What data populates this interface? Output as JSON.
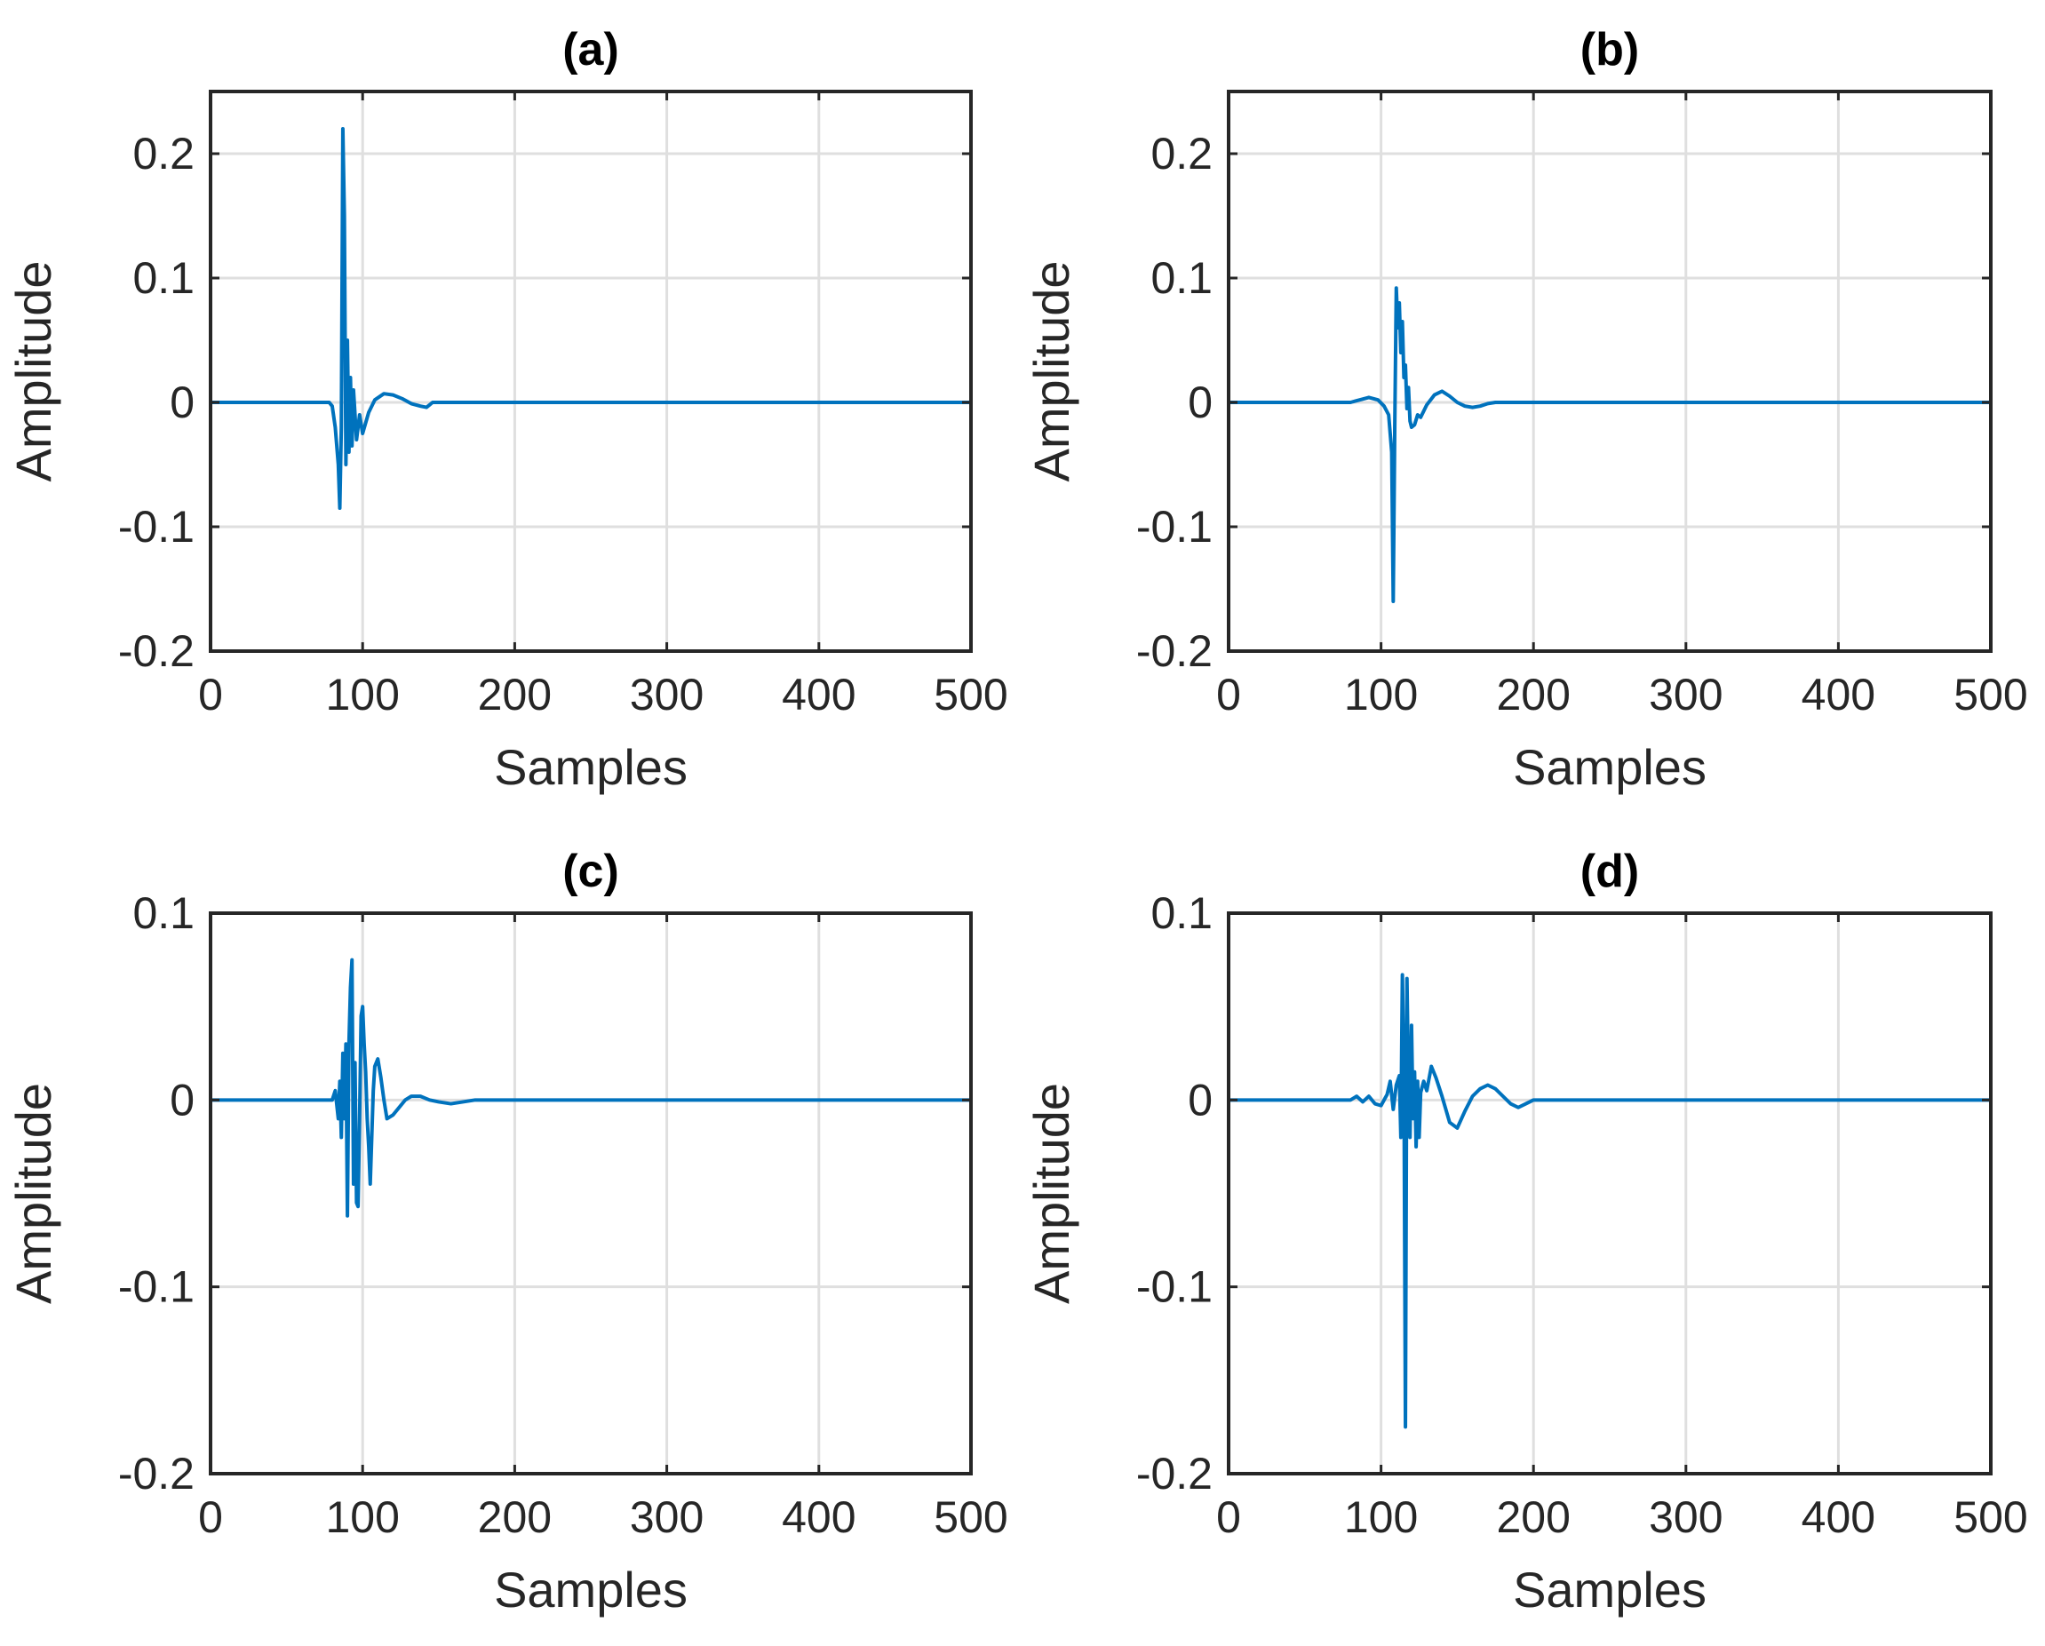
{
  "figure": {
    "line_color": "#0072BD",
    "grid_color": "#dfdfdf",
    "axes_color": "#262626"
  },
  "chart_data": [
    {
      "type": "line",
      "title": "(a)",
      "xlabel": "Samples",
      "ylabel": "Amplitude",
      "xlim": [
        0,
        500
      ],
      "ylim": [
        -0.2,
        0.25
      ],
      "xticks": [
        0,
        100,
        200,
        300,
        400,
        500
      ],
      "yticks": [
        -0.2,
        -0.1,
        0,
        0.1,
        0.2
      ],
      "xtick_labels": [
        "0",
        "100",
        "200",
        "300",
        "400",
        "500"
      ],
      "ytick_labels": [
        "-0.2",
        "-0.1",
        "0",
        "0.1",
        "0.2"
      ],
      "grid": true,
      "series": [
        {
          "x": [
            0,
            78,
            80,
            82,
            84,
            85,
            86,
            87,
            88,
            89,
            90,
            91,
            92,
            93,
            94,
            96,
            98,
            100,
            104,
            108,
            114,
            120,
            126,
            132,
            138,
            142,
            144,
            146,
            500
          ],
          "y": [
            0,
            0,
            -0.003,
            -0.02,
            -0.05,
            -0.085,
            -0.02,
            0.22,
            0.15,
            -0.05,
            0.05,
            -0.04,
            0.02,
            -0.035,
            0.01,
            -0.03,
            -0.01,
            -0.025,
            -0.008,
            0.002,
            0.007,
            0.006,
            0.003,
            -0.001,
            -0.003,
            -0.004,
            -0.002,
            0,
            0
          ]
        }
      ]
    },
    {
      "type": "line",
      "title": "(b)",
      "xlabel": "Samples",
      "ylabel": "Amplitude",
      "xlim": [
        0,
        500
      ],
      "ylim": [
        -0.2,
        0.25
      ],
      "xticks": [
        0,
        100,
        200,
        300,
        400,
        500
      ],
      "yticks": [
        -0.2,
        -0.1,
        0,
        0.1,
        0.2
      ],
      "xtick_labels": [
        "0",
        "100",
        "200",
        "300",
        "400",
        "500"
      ],
      "ytick_labels": [
        "-0.2",
        "-0.1",
        "0",
        "0.1",
        "0.2"
      ],
      "grid": true,
      "series": [
        {
          "x": [
            0,
            80,
            86,
            92,
            98,
            102,
            105,
            107,
            108,
            109,
            110,
            111,
            112,
            113,
            114,
            115,
            116,
            117,
            118,
            119,
            120,
            122,
            124,
            126,
            130,
            135,
            140,
            145,
            150,
            155,
            160,
            165,
            170,
            175,
            180,
            500
          ],
          "y": [
            0,
            0,
            0.002,
            0.004,
            0.002,
            -0.003,
            -0.01,
            -0.04,
            -0.16,
            -0.02,
            0.092,
            0.06,
            0.08,
            0.04,
            0.065,
            0.02,
            0.03,
            -0.005,
            0.012,
            -0.015,
            -0.02,
            -0.018,
            -0.01,
            -0.012,
            -0.002,
            0.006,
            0.009,
            0.005,
            0.0,
            -0.003,
            -0.004,
            -0.003,
            -0.001,
            0,
            0,
            0
          ]
        }
      ]
    },
    {
      "type": "line",
      "title": "(c)",
      "xlabel": "Samples",
      "ylabel": "Amplitude",
      "xlim": [
        0,
        500
      ],
      "ylim": [
        -0.2,
        0.1
      ],
      "xticks": [
        0,
        100,
        200,
        300,
        400,
        500
      ],
      "yticks": [
        -0.2,
        -0.1,
        0,
        0.1
      ],
      "xtick_labels": [
        "0",
        "100",
        "200",
        "300",
        "400",
        "500"
      ],
      "ytick_labels": [
        "-0.2",
        "-0.1",
        "0",
        "0.1"
      ],
      "grid": true,
      "series": [
        {
          "x": [
            0,
            80,
            82,
            84,
            85,
            86,
            87,
            88,
            89,
            90,
            91,
            92,
            93,
            94,
            95,
            96,
            97,
            98,
            99,
            100,
            101,
            102,
            103,
            104,
            105,
            106,
            107,
            108,
            110,
            112,
            114,
            116,
            120,
            124,
            128,
            132,
            138,
            144,
            150,
            158,
            166,
            174,
            180,
            500
          ],
          "y": [
            0,
            0,
            0.005,
            -0.01,
            0.01,
            -0.02,
            0.025,
            -0.01,
            0.03,
            -0.062,
            0.03,
            0.06,
            0.075,
            -0.045,
            0.02,
            -0.055,
            -0.057,
            -0.01,
            0.045,
            0.05,
            0.03,
            0.015,
            -0.01,
            -0.025,
            -0.045,
            -0.02,
            0.005,
            0.018,
            0.022,
            0.012,
            0.0,
            -0.01,
            -0.008,
            -0.004,
            0.0,
            0.002,
            0.002,
            0.0,
            -0.001,
            -0.002,
            -0.001,
            0,
            0,
            0
          ]
        }
      ]
    },
    {
      "type": "line",
      "title": "(d)",
      "xlabel": "Samples",
      "ylabel": "Amplitude",
      "xlim": [
        0,
        500
      ],
      "ylim": [
        -0.2,
        0.1
      ],
      "xticks": [
        0,
        100,
        200,
        300,
        400,
        500
      ],
      "yticks": [
        -0.2,
        -0.1,
        0,
        0.1
      ],
      "xtick_labels": [
        "0",
        "100",
        "200",
        "300",
        "400",
        "500"
      ],
      "ytick_labels": [
        "-0.2",
        "-0.1",
        "0",
        "0.1"
      ],
      "grid": true,
      "series": [
        {
          "x": [
            0,
            80,
            84,
            88,
            92,
            96,
            100,
            104,
            106,
            108,
            110,
            112,
            113,
            114,
            115,
            116,
            117,
            118,
            119,
            120,
            121,
            122,
            123,
            124,
            125,
            126,
            128,
            130,
            133,
            136,
            140,
            145,
            150,
            155,
            160,
            165,
            170,
            175,
            180,
            185,
            190,
            195,
            200,
            500
          ],
          "y": [
            0,
            0,
            0.002,
            -0.001,
            0.002,
            -0.002,
            -0.003,
            0.003,
            0.01,
            -0.005,
            0.008,
            0.013,
            -0.02,
            0.067,
            0.02,
            -0.175,
            0.065,
            0.01,
            -0.02,
            0.04,
            -0.01,
            0.015,
            -0.025,
            0.01,
            -0.02,
            0.004,
            0.01,
            0.005,
            0.018,
            0.012,
            0.002,
            -0.012,
            -0.015,
            -0.006,
            0.002,
            0.006,
            0.008,
            0.006,
            0.002,
            -0.002,
            -0.004,
            -0.002,
            0,
            0
          ]
        }
      ]
    }
  ]
}
